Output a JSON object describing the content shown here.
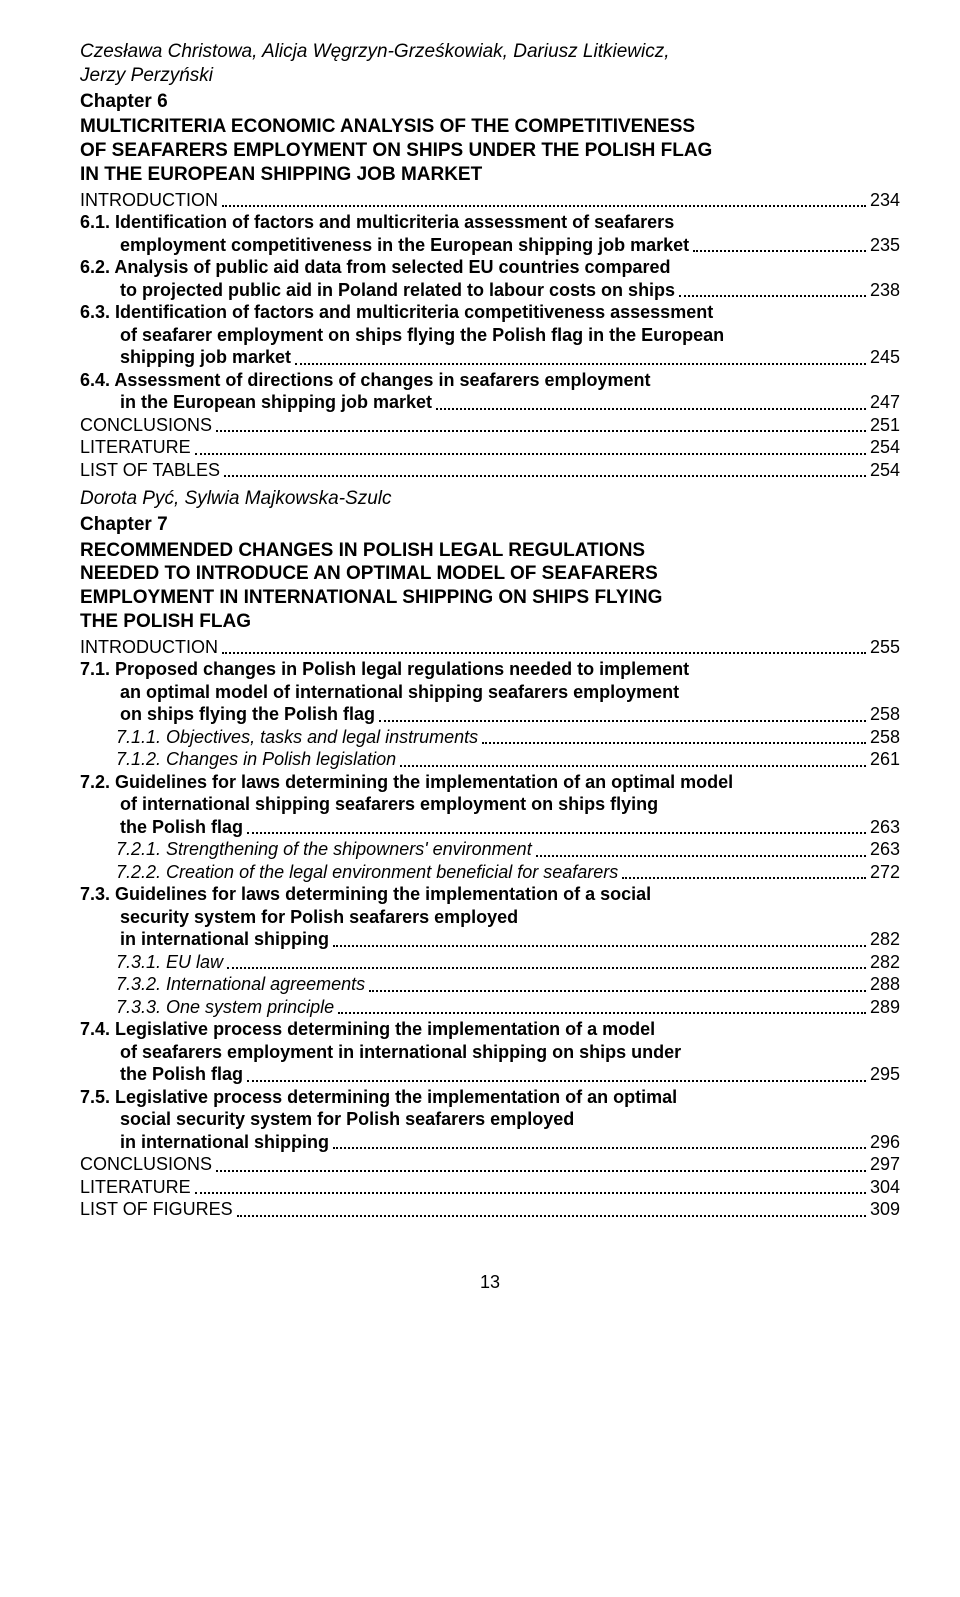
{
  "chapter6": {
    "authors": "Czesława Christowa, Alicja Węgrzyn-Grześkowiak, Dariusz Litkiewicz,\nJerzy Perzyński",
    "chapter_label": "Chapter 6",
    "title": "MULTICRITERIA ECONOMIC ANALYSIS OF THE COMPETITIVENESS\nOF SEAFARERS EMPLOYMENT ON SHIPS UNDER THE POLISH FLAG\nIN THE EUROPEAN SHIPPING JOB MARKET",
    "entries": [
      {
        "label": "INTRODUCTION",
        "page": "234",
        "bold": false,
        "indent": 0
      },
      {
        "label": "6.1. Identification of factors and multicriteria assessment of seafarers\nemployment competitiveness in the European shipping job market",
        "page": "235",
        "bold": true,
        "indent": 0,
        "hang": true
      },
      {
        "label": "6.2. Analysis of public aid data from selected EU countries compared\nto projected public aid in Poland related to labour costs on ships",
        "page": "238",
        "bold": true,
        "indent": 0,
        "hang": true
      },
      {
        "label": "6.3. Identification of factors and multicriteria competitiveness assessment\nof seafarer employment on ships flying the Polish flag in the European\nshipping job market",
        "page": "245",
        "bold": true,
        "indent": 0,
        "hang": true
      },
      {
        "label": "6.4. Assessment of directions of changes in seafarers employment\nin the European shipping job market",
        "page": "247",
        "bold": true,
        "indent": 0,
        "hang": true
      },
      {
        "label": "CONCLUSIONS",
        "page": "251",
        "bold": false,
        "indent": 0
      },
      {
        "label": "LITERATURE",
        "page": "254",
        "bold": false,
        "indent": 0
      },
      {
        "label": "LIST OF TABLES",
        "page": "254",
        "bold": false,
        "indent": 0
      }
    ]
  },
  "chapter7": {
    "authors": "Dorota Pyć, Sylwia Majkowska-Szulc",
    "chapter_label": "Chapter 7",
    "title": "RECOMMENDED CHANGES IN POLISH LEGAL REGULATIONS\nNEEDED TO INTRODUCE AN OPTIMAL MODEL OF SEAFARERS\nEMPLOYMENT IN INTERNATIONAL SHIPPING ON SHIPS FLYING\nTHE POLISH FLAG",
    "entries": [
      {
        "label": "INTRODUCTION",
        "page": "255",
        "bold": false,
        "indent": 0
      },
      {
        "label": "7.1. Proposed changes in Polish legal regulations needed to implement\nan optimal model of international shipping seafarers employment\non ships flying the Polish flag",
        "page": "258",
        "bold": true,
        "indent": 0,
        "hang": true
      },
      {
        "label": "7.1.1. Objectives, tasks and legal instruments",
        "page": "258",
        "italic": true,
        "indent": 1
      },
      {
        "label": "7.1.2. Changes in Polish legislation",
        "page": "261",
        "italic": true,
        "indent": 1
      },
      {
        "label": "7.2. Guidelines for laws determining the implementation of an optimal model\nof international shipping seafarers employment on ships flying\nthe Polish flag",
        "page": "263",
        "bold": true,
        "indent": 0,
        "hang": true
      },
      {
        "label": "7.2.1. Strengthening of the shipowners' environment",
        "page": "263",
        "italic": true,
        "indent": 1
      },
      {
        "label": "7.2.2. Creation of the legal environment beneficial for seafarers",
        "page": "272",
        "italic": true,
        "indent": 1
      },
      {
        "label": "7.3. Guidelines for laws determining the implementation of a social\nsecurity system for Polish seafarers employed\nin international shipping",
        "page": "282",
        "bold": true,
        "indent": 0,
        "hang": true
      },
      {
        "label": "7.3.1. EU law",
        "page": "282",
        "italic": true,
        "indent": 1
      },
      {
        "label": "7.3.2. International agreements",
        "page": "288",
        "italic": true,
        "indent": 1
      },
      {
        "label": "7.3.3. One system principle",
        "page": "289",
        "italic": true,
        "indent": 1
      },
      {
        "label": "7.4. Legislative process determining the implementation of a model\nof seafarers employment in international shipping on ships under\nthe Polish flag",
        "page": "295",
        "bold": true,
        "indent": 0,
        "hang": true
      },
      {
        "label": "7.5. Legislative process determining the implementation of an optimal\nsocial security system for Polish seafarers employed\nin international shipping",
        "page": "296",
        "bold": true,
        "indent": 0,
        "hang": true
      },
      {
        "label": "CONCLUSIONS",
        "page": "297",
        "bold": false,
        "indent": 0
      },
      {
        "label": "LITERATURE",
        "page": "304",
        "bold": false,
        "indent": 0
      },
      {
        "label": "LIST OF FIGURES",
        "page": "309",
        "bold": false,
        "indent": 0
      }
    ]
  },
  "page_number": "13"
}
